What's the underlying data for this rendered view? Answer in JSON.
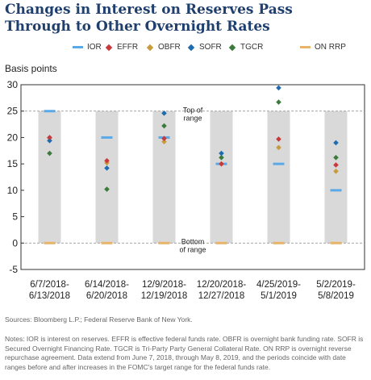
{
  "title": "Changes in Interest on Reserves Pass Through to Other Overnight Rates",
  "legend": [
    {
      "name": "IOR",
      "marker": "dash",
      "color": "#5aa9e6"
    },
    {
      "name": "EFFR",
      "marker": "diamond",
      "color": "#c8383c"
    },
    {
      "name": "OBFR",
      "marker": "diamond",
      "color": "#c89b3c"
    },
    {
      "name": "SOFR",
      "marker": "diamond",
      "color": "#1f6bb0"
    },
    {
      "name": "TGCR",
      "marker": "diamond",
      "color": "#3a7a3a"
    },
    {
      "name": "ON RRP",
      "marker": "dash",
      "color": "#e8b46a"
    }
  ],
  "chart_data": {
    "type": "scatter",
    "ylabel": "Basis points",
    "ylim": [
      -5,
      30
    ],
    "yticks": [
      -5,
      0,
      5,
      10,
      15,
      20,
      25,
      30
    ],
    "categories": [
      [
        "6/7/2018-",
        "6/13/2018"
      ],
      [
        "6/14/2018-",
        "6/20/2018"
      ],
      [
        "12/9/2018-",
        "12/19/2018"
      ],
      [
        "12/20/2018-",
        "12/27/2018"
      ],
      [
        "4/25/2019-",
        "5/1/2019"
      ],
      [
        "5/2/2019-",
        "5/8/2019"
      ]
    ],
    "range_band": {
      "low": 0,
      "high": 25,
      "top_label": [
        "Top of",
        "range"
      ],
      "bottom_label": [
        "Bottom",
        "of range"
      ]
    },
    "series": [
      {
        "name": "IOR",
        "marker": "dash",
        "color": "#5aa9e6",
        "values": [
          25,
          20,
          20,
          15,
          15,
          10
        ]
      },
      {
        "name": "ON RRP",
        "marker": "dash",
        "color": "#e8b46a",
        "values": [
          0,
          0,
          0,
          0,
          0,
          0
        ]
      },
      {
        "name": "TGCR",
        "marker": "diamond",
        "color": "#3a7a3a",
        "values": [
          17,
          10.2,
          22.2,
          16.2,
          26.7,
          16.2
        ]
      },
      {
        "name": "OBFR",
        "marker": "diamond",
        "color": "#c89b3c",
        "values": [
          19.9,
          15.2,
          19.2,
          15,
          18.1,
          13.6
        ]
      },
      {
        "name": "SOFR",
        "marker": "diamond",
        "color": "#1f6bb0",
        "values": [
          19.4,
          14.2,
          24.6,
          17,
          29.4,
          19
        ]
      },
      {
        "name": "EFFR",
        "marker": "diamond",
        "color": "#c8383c",
        "values": [
          20,
          15.6,
          19.8,
          15,
          19.7,
          14.8
        ]
      }
    ]
  },
  "source": "Sources: Bloomberg L.P.; Federal Reserve Bank of New York.",
  "notes": "Notes: IOR is interest on reserves. EFFR is effective federal funds rate. OBFR is overnight bank funding rate. SOFR is Secured Overnight Financing Rate. TGCR is Tri-Party Party General Collateral Rate. ON RRP is overnight reverse repurchase agreement. Data extend from June 7, 2018, through May 8, 2019, and the periods coincide with date ranges before and after increases in the FOMC's target range for the federal funds rate."
}
